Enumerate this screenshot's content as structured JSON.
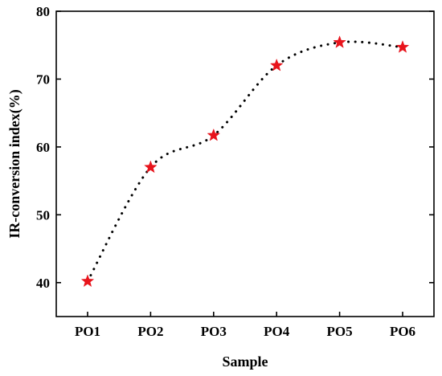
{
  "chart_data": {
    "type": "scatter",
    "title": "",
    "xlabel": "Sample",
    "ylabel": "IR-conversion index(%)",
    "categories": [
      "PO1",
      "PO2",
      "PO3",
      "PO4",
      "PO5",
      "PO6"
    ],
    "series": [
      {
        "values": [
          40.2,
          57.0,
          61.7,
          72.0,
          75.4,
          74.7
        ],
        "marker": "star",
        "marker_color": "#e8141c",
        "line": "dotted smooth"
      }
    ],
    "ylim": [
      35,
      80
    ],
    "yticks": [
      40,
      50,
      60,
      70,
      80
    ],
    "grid": false,
    "legend": "none"
  }
}
